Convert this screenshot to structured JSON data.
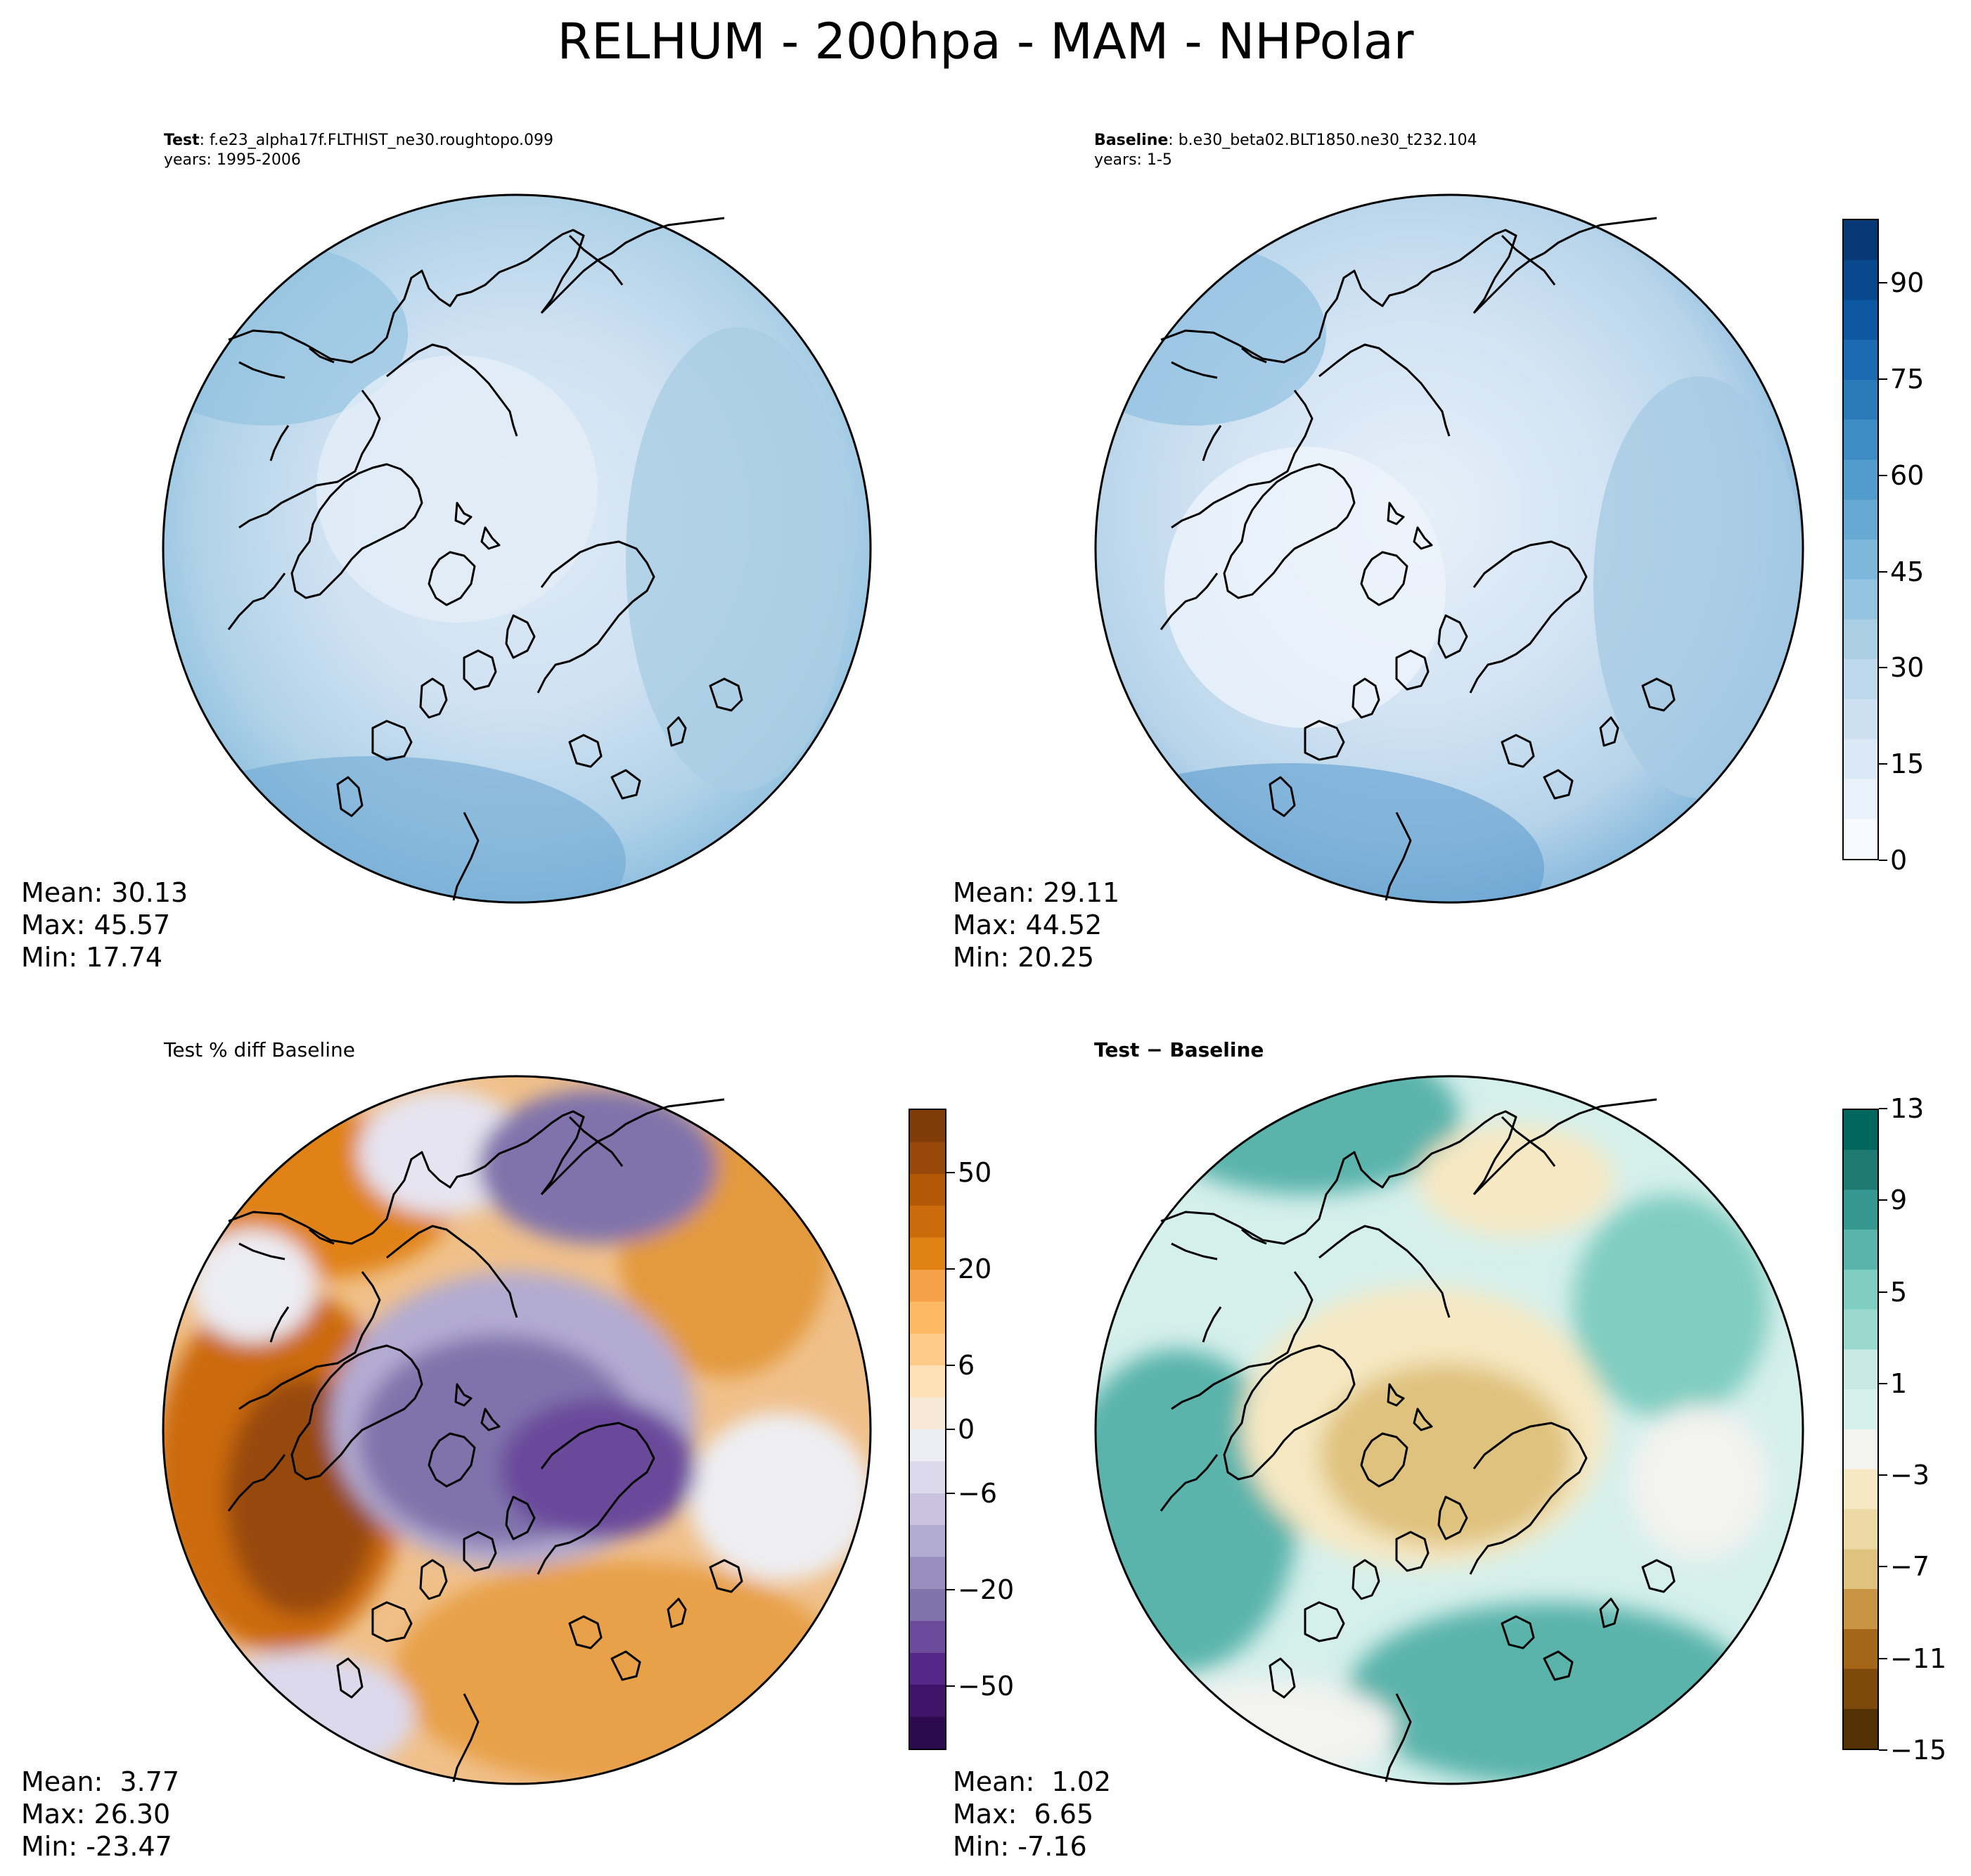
{
  "title": "RELHUM - 200hpa - MAM - NHPolar",
  "panels": {
    "test": {
      "label_bold": "Test",
      "label_rest": ": f.e23_alpha17f.FLTHIST_ne30.roughtopo.099",
      "years": "years: 1995-2006",
      "mean": "Mean: 30.13",
      "max": "Max: 45.57",
      "min": "Min: 17.74"
    },
    "baseline": {
      "label_bold": "Baseline",
      "label_rest": ": b.e30_beta02.BLT1850.ne30_t232.104",
      "years": "years: 1-5",
      "mean": "Mean: 29.11",
      "max": "Max: 44.52",
      "min": "Min: 20.25"
    },
    "pctdiff": {
      "title": "Test % diff Baseline",
      "mean": "Mean:  3.77",
      "max": "Max: 26.30",
      "min": "Min: -23.47"
    },
    "diff": {
      "title": "Test − Baseline",
      "mean": "Mean:  1.02",
      "max": "Max:  6.65",
      "min": "Min: -7.16"
    }
  },
  "colorbars": {
    "main": {
      "ticks": [
        "0",
        "15",
        "30",
        "45",
        "60",
        "75",
        "90"
      ],
      "range": [
        0,
        100
      ],
      "colors": [
        "#f7fbff",
        "#e9f2fb",
        "#dbe9f6",
        "#cde0f2",
        "#bed8ec",
        "#aacfe5",
        "#94c4df",
        "#7db8da",
        "#66aad4",
        "#519ccc",
        "#3d8dc4",
        "#2c7bb9",
        "#1c6aaf",
        "#0e58a2",
        "#08488d",
        "#083776"
      ]
    },
    "pctdiff": {
      "ticks": [
        "−50",
        "−20",
        "−6",
        "0",
        "6",
        "20",
        "50"
      ],
      "colors": [
        "#2d0a4e",
        "#3f1368",
        "#542788",
        "#6b4a9b",
        "#8073ac",
        "#978dbf",
        "#b2abd2",
        "#c9c3e0",
        "#dcd9ed",
        "#ececf3",
        "#f6e8d4",
        "#fee0b6",
        "#fdca8a",
        "#fdb863",
        "#f5a14a",
        "#e08214",
        "#cc6b0b",
        "#b35806",
        "#97480a",
        "#7f3b08"
      ]
    },
    "diff": {
      "ticks": [
        "−15",
        "−11",
        "−7",
        "−3",
        "1",
        "5",
        "9",
        "13"
      ],
      "colors": [
        "#543005",
        "#7d4a0c",
        "#a6661a",
        "#c79543",
        "#dfc27d",
        "#ecd9a6",
        "#f6e8c3",
        "#f3f3f0",
        "#d5efeb",
        "#c7eae5",
        "#9bd9ce",
        "#80cdc1",
        "#5ab4ac",
        "#35978f",
        "#1f7b71",
        "#01665e"
      ]
    }
  }
}
